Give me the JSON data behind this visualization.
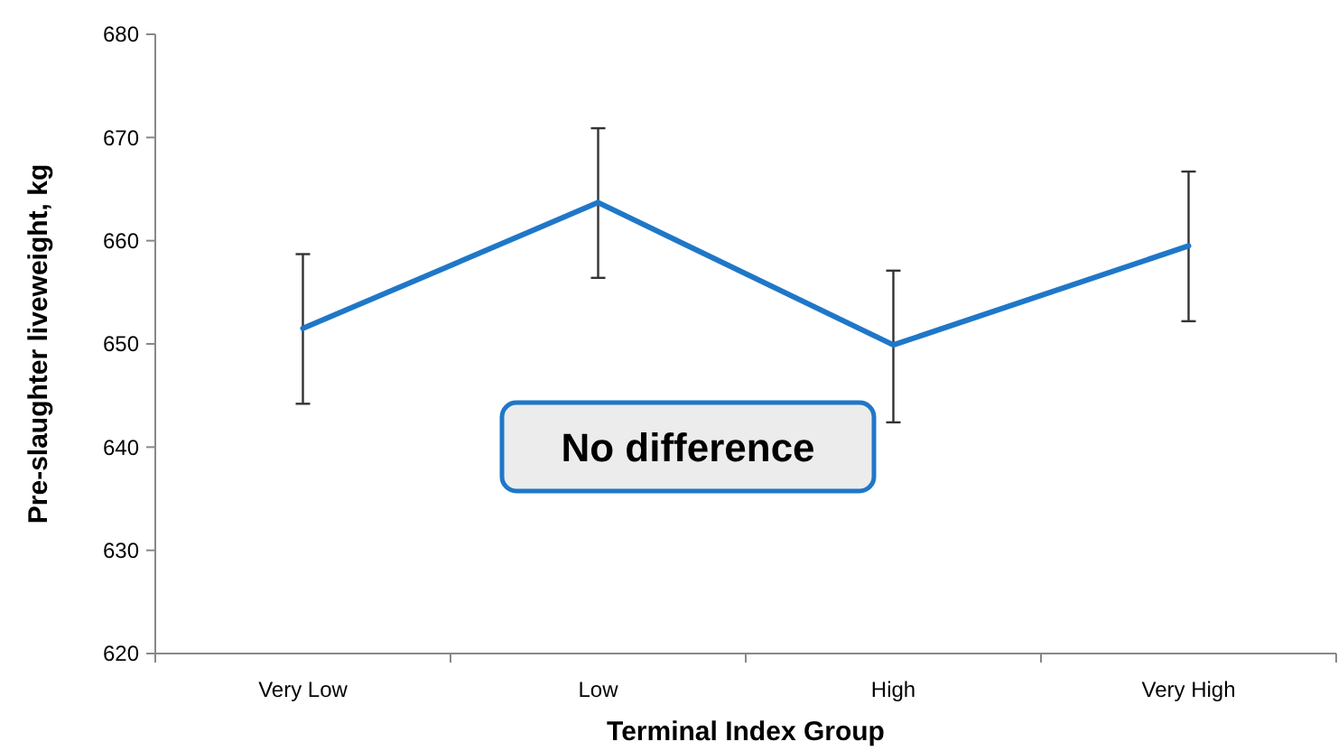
{
  "chart_data": {
    "type": "line",
    "xlabel": "Terminal Index Group",
    "ylabel": "Pre-slaughter liveweight, kg",
    "categories": [
      "Very Low",
      "Low",
      "High",
      "Very High"
    ],
    "series": [
      {
        "color": "#1f77c8",
        "values": [
          651.5,
          663.7,
          649.9,
          659.5
        ],
        "errors": [
          [
            644.2,
            658.7
          ],
          [
            656.4,
            670.9
          ],
          [
            642.4,
            657.1
          ],
          [
            652.2,
            666.7
          ]
        ]
      }
    ],
    "ylim": [
      620,
      680
    ],
    "yticks": [
      620,
      630,
      640,
      650,
      660,
      670,
      680
    ],
    "grid": false,
    "marker": "none",
    "line_style": "solid",
    "annotations": [
      "No difference"
    ]
  }
}
